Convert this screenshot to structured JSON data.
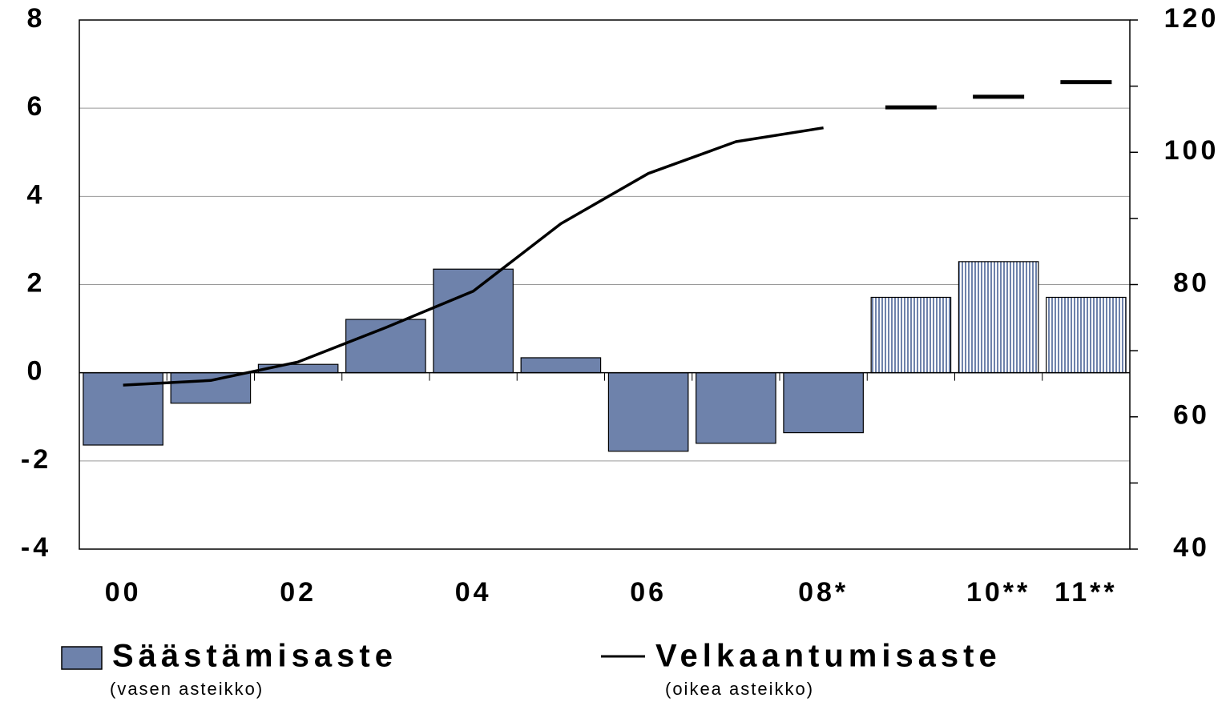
{
  "chart_data": {
    "type": "bar_line",
    "categories": [
      "00",
      null,
      "02",
      null,
      "04",
      null,
      "06",
      null,
      "08*",
      null,
      "10**",
      "11**"
    ],
    "forecast_from": 9,
    "series": [
      {
        "name": "Säästämisaste",
        "note": "(vasen asteikko)",
        "type": "bar",
        "color": "#6e82ab",
        "values": [
          -1.64,
          -0.69,
          0.19,
          1.21,
          2.35,
          0.34,
          -1.78,
          -1.6,
          -1.36,
          1.71,
          2.52,
          1.71
        ]
      },
      {
        "name": "Velkaantumisaste",
        "note": "(oikea asteikko)",
        "type": "line",
        "axis": "y2",
        "color": "#000000",
        "values": [
          64.8,
          65.5,
          68.3,
          73.5,
          79.0,
          89.2,
          96.8,
          101.6,
          103.7,
          106.8,
          108.4,
          110.6
        ]
      }
    ],
    "ylim": [
      -4,
      8
    ],
    "yticks": [
      -4,
      -2,
      0,
      2,
      4,
      6,
      8
    ],
    "y2lim": [
      40,
      120
    ],
    "y2ticks": [
      40,
      60,
      80,
      100,
      120
    ],
    "y2minorticks": [
      50,
      70,
      90,
      110
    ],
    "grid": true
  }
}
